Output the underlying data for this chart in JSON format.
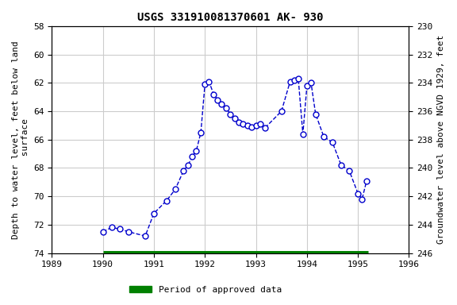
{
  "title": "USGS 331910081370601 AK- 930",
  "ylabel_left": "Depth to water level, feet below land\n surface",
  "ylabel_right": "Groundwater level above NGVD 1929, feet",
  "xlim": [
    1989,
    1996
  ],
  "ylim_left": [
    58,
    74
  ],
  "ylim_right": [
    230,
    246
  ],
  "xticks": [
    1989,
    1990,
    1991,
    1992,
    1993,
    1994,
    1995,
    1996
  ],
  "yticks_left": [
    58,
    60,
    62,
    64,
    66,
    68,
    70,
    72,
    74
  ],
  "yticks_right": [
    230,
    232,
    234,
    236,
    238,
    240,
    242,
    244,
    246
  ],
  "line_color": "#0000cc",
  "marker_color": "#0000cc",
  "marker_size": 5,
  "marker_facecolor": "white",
  "linestyle": "--",
  "linewidth": 1.0,
  "grid_color": "#cccccc",
  "background_color": "#ffffff",
  "legend_label": "Period of approved data",
  "legend_color": "#008000",
  "approved_bar_xstart": 1990.0,
  "approved_bar_xend": 1995.2,
  "title_fontsize": 10,
  "axis_label_fontsize": 8,
  "tick_fontsize": 8,
  "dates": [
    1990.0,
    1990.17,
    1990.33,
    1990.5,
    1990.83,
    1991.0,
    1991.25,
    1991.42,
    1991.58,
    1991.67,
    1991.75,
    1991.83,
    1991.92,
    1992.0,
    1992.08,
    1992.17,
    1992.25,
    1992.33,
    1992.42,
    1992.5,
    1992.58,
    1992.67,
    1992.75,
    1992.83,
    1992.92,
    1993.0,
    1993.08,
    1993.17,
    1993.5,
    1993.67,
    1993.75,
    1993.83,
    1993.92,
    1994.0,
    1994.08,
    1994.17,
    1994.33,
    1994.5,
    1994.67,
    1994.83,
    1995.0,
    1995.08,
    1995.17
  ],
  "depths": [
    72.5,
    72.2,
    72.3,
    72.5,
    72.8,
    71.2,
    70.3,
    69.5,
    68.2,
    67.8,
    67.2,
    66.8,
    65.5,
    62.1,
    61.9,
    62.8,
    63.2,
    63.5,
    63.8,
    64.2,
    64.5,
    64.8,
    64.9,
    65.0,
    65.1,
    65.0,
    64.9,
    65.2,
    64.0,
    61.9,
    61.8,
    61.7,
    65.6,
    62.2,
    62.0,
    64.2,
    65.8,
    66.2,
    67.8,
    68.2,
    69.8,
    70.2,
    68.9
  ]
}
